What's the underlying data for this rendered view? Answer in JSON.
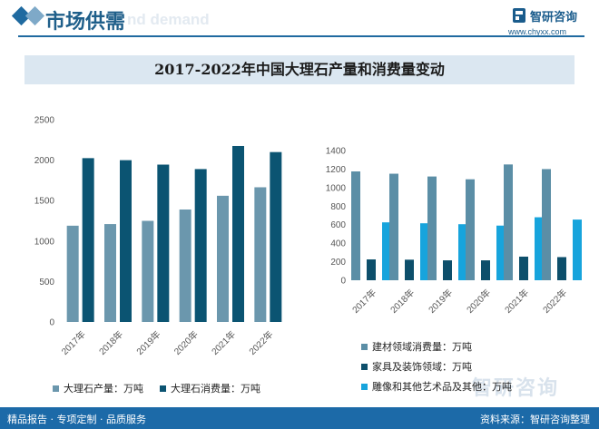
{
  "header": {
    "section_title": "市场供需",
    "ghost_title": "nd demand",
    "brand": "智研咨询",
    "url": "www.chyxx.com"
  },
  "colors": {
    "production": "#6b97ad",
    "consumption": "#0b5472",
    "building": "#5b8ea6",
    "furniture": "#0d4f6b",
    "art": "#17a4dc",
    "accent": "#1f6aa0"
  },
  "chart_data": [
    {
      "type": "bar",
      "title": "2017-2022年中国大理石产量和消费量变动",
      "categories": [
        "2017年",
        "2018年",
        "2019年",
        "2020年",
        "2021年",
        "2022年"
      ],
      "series": [
        {
          "name": "大理石产量：万吨",
          "values": [
            1190,
            1210,
            1250,
            1390,
            1560,
            1665
          ]
        },
        {
          "name": "大理石消费量：万吨",
          "values": [
            2025,
            2000,
            1945,
            1890,
            2175,
            2100
          ]
        }
      ],
      "ylim": [
        0,
        2500
      ],
      "yticks": [
        0,
        500,
        1000,
        1500,
        2000,
        2500
      ],
      "legend": "bottom"
    },
    {
      "type": "bar",
      "categories": [
        "2017年",
        "2018年",
        "2019年",
        "2020年",
        "2021年",
        "2022年"
      ],
      "series": [
        {
          "name": "建材领域消费量：万吨",
          "values": [
            1175,
            1150,
            1120,
            1090,
            1250,
            1200
          ]
        },
        {
          "name": "家具及装饰领域：万吨",
          "values": [
            225,
            222,
            215,
            215,
            255,
            250
          ]
        },
        {
          "name": "雕像和其他艺术品及其他：万吨",
          "values": [
            625,
            615,
            605,
            590,
            680,
            655
          ]
        }
      ],
      "ylim": [
        0,
        1400
      ],
      "yticks": [
        0,
        200,
        400,
        600,
        800,
        1000,
        1200,
        1400
      ],
      "legend": "bottom"
    }
  ],
  "footer": {
    "left": "精品报告 · 专项定制 · 品质服务",
    "right": "资料来源：智研咨询整理"
  },
  "watermark": "智研咨询"
}
